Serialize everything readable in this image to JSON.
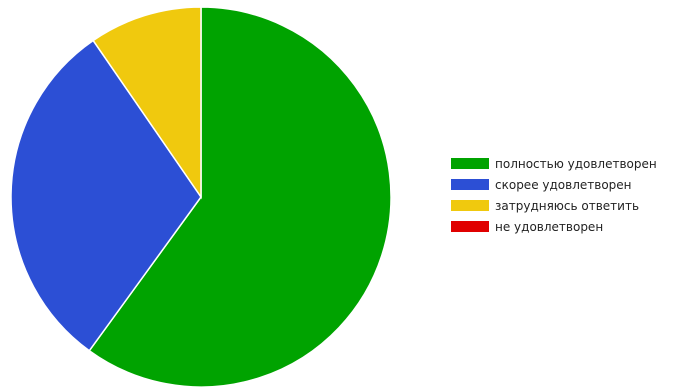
{
  "chart_data": {
    "type": "pie",
    "title": "",
    "legend_position": "right",
    "slices": [
      {
        "label": "полностью удовлетворен",
        "value": 60.0,
        "color": "#00A300"
      },
      {
        "label": "скорее удовлетворен",
        "value": 30.4,
        "color": "#2C4FD5"
      },
      {
        "label": "затрудняюсь ответить",
        "value": 9.6,
        "color": "#F0C90E"
      },
      {
        "label": "не удовлетворен",
        "value": 0,
        "color": "#E00000"
      }
    ]
  }
}
